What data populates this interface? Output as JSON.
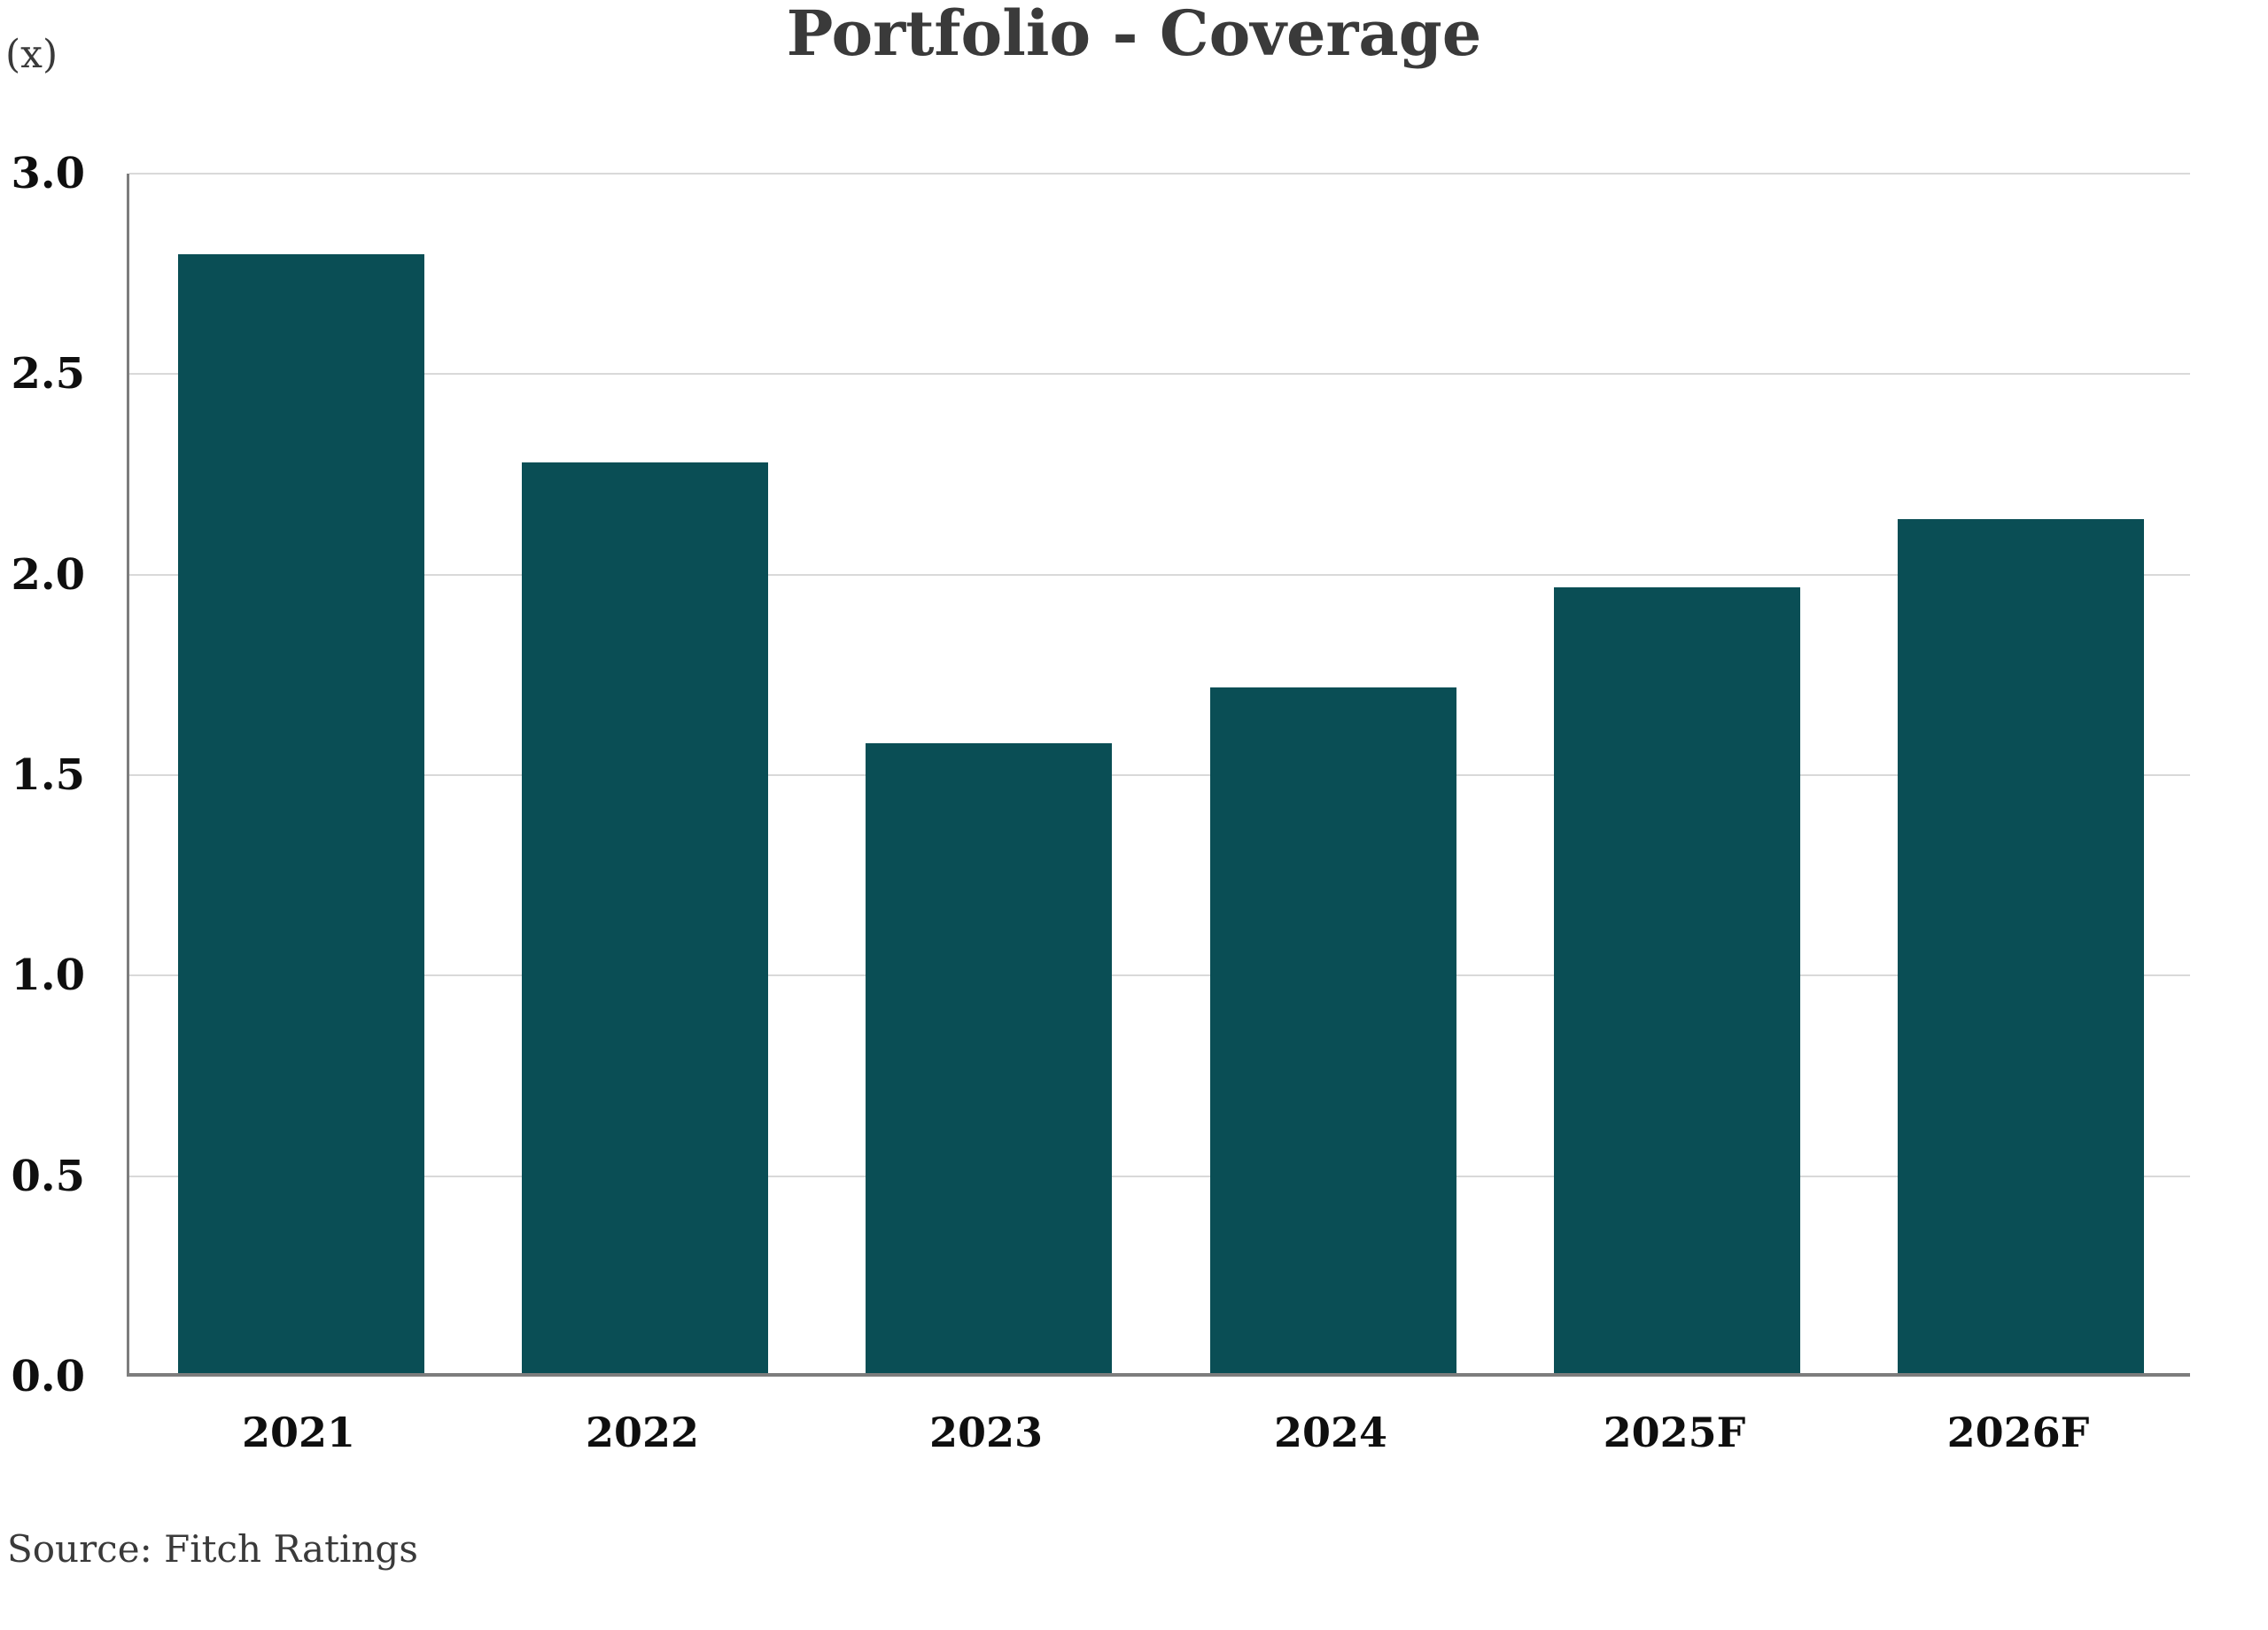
{
  "chart_data": {
    "type": "bar",
    "title": "Portfolio - Coverage",
    "unit_label": "(x)",
    "categories": [
      "2021",
      "2022",
      "2023",
      "2024",
      "2025F",
      "2026F"
    ],
    "values": [
      2.79,
      2.27,
      1.57,
      1.71,
      1.96,
      2.13
    ],
    "xlabel": "",
    "ylabel": "(x)",
    "ylim": [
      0,
      3
    ],
    "ytick_step": 0.5,
    "yticks": [
      "3.0",
      "2.5",
      "2.0",
      "1.5",
      "1.0",
      "0.5",
      "0.0"
    ],
    "grid": "horizontal",
    "legend": "none",
    "source": "Source: Fitch Ratings"
  },
  "colors": {
    "bar": "#0a4e55",
    "gridline": "#d9d9d9",
    "axis": "#7d7d7d",
    "title_text": "#3a3a3a",
    "tick_text": "#0f0f0f",
    "source_text": "#3a3a3a",
    "background": "#ffffff"
  }
}
